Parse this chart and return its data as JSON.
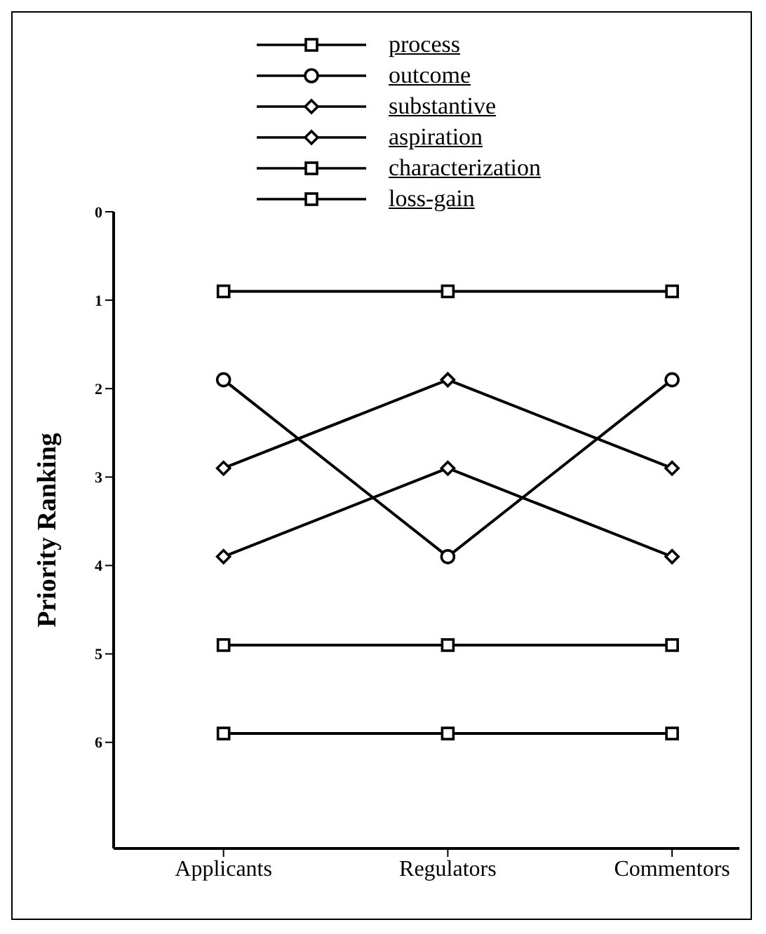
{
  "chart_data": {
    "type": "line",
    "ylabel": "Priority Ranking",
    "categories": [
      "Applicants",
      "Regulators",
      "Commentors"
    ],
    "series": [
      {
        "name": "process",
        "color": "#000000",
        "marker": "square",
        "values": [
          0.9,
          0.9,
          0.9
        ]
      },
      {
        "name": "outcome",
        "color": "#000000",
        "marker": "circle",
        "values": [
          1.9,
          3.9,
          1.9
        ]
      },
      {
        "name": "substantive",
        "color": "#000000",
        "marker": "diamond",
        "values": [
          2.9,
          1.9,
          2.9
        ]
      },
      {
        "name": "aspiration",
        "color": "#000000",
        "marker": "diamond",
        "values": [
          3.9,
          2.9,
          3.9
        ]
      },
      {
        "name": "characterization",
        "color": "#000000",
        "marker": "square",
        "values": [
          4.9,
          4.9,
          4.9
        ]
      },
      {
        "name": "loss-gain",
        "color": "#000000",
        "marker": "square",
        "values": [
          5.9,
          5.9,
          5.9
        ]
      }
    ],
    "ylim": [
      7.2,
      0
    ],
    "yticks": [
      0,
      1,
      2,
      3,
      4,
      5,
      6
    ],
    "grid": false,
    "legend": "top",
    "line_style": "solid"
  }
}
